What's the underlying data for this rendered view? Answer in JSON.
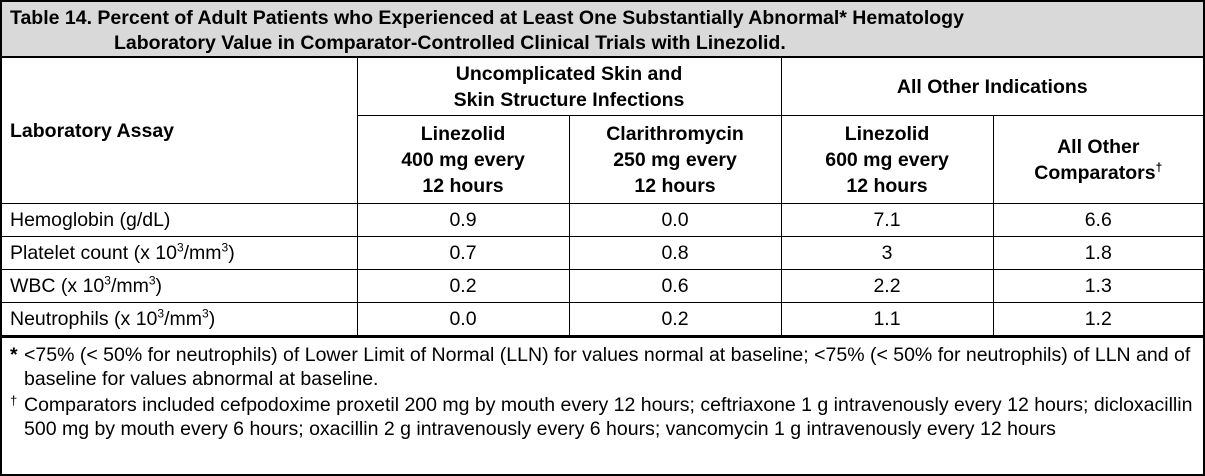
{
  "title": {
    "line1": "Table 14. Percent of Adult Patients who Experienced at Least One Substantially Abnormal* Hematology",
    "line2": "Laboratory Value in Comparator-Controlled Clinical Trials with Linezolid."
  },
  "header": {
    "assay_label": "Laboratory Assay",
    "group1": {
      "line1": "Uncomplicated Skin and",
      "line2": "Skin Structure Infections"
    },
    "group2": "All Other Indications",
    "col1": {
      "line1": "Linezolid",
      "line2": "400 mg every",
      "line3": "12 hours"
    },
    "col2": {
      "line1": "Clarithromycin",
      "line2": "250 mg every",
      "line3": "12 hours"
    },
    "col3": {
      "line1": "Linezolid",
      "line2": "600 mg every",
      "line3": "12 hours"
    },
    "col4": {
      "line1": "All Other",
      "line2": "Comparators",
      "dagger": "†"
    }
  },
  "rows": [
    {
      "label_pre": "Hemoglobin (g/dL)",
      "exp1": "",
      "mid": "",
      "exp2": "",
      "post": "",
      "values": [
        "0.9",
        "0.0",
        "7.1",
        "6.6"
      ]
    },
    {
      "label_pre": "Platelet count (x 10",
      "exp1": "3",
      "mid": "/mm",
      "exp2": "3",
      "post": ")",
      "values": [
        "0.7",
        "0.8",
        "3",
        "1.8"
      ]
    },
    {
      "label_pre": "WBC (x 10",
      "exp1": "3",
      "mid": "/mm",
      "exp2": "3",
      "post": ")",
      "values": [
        "0.2",
        "0.6",
        "2.2",
        "1.3"
      ]
    },
    {
      "label_pre": "Neutrophils (x 10",
      "exp1": "3",
      "mid": "/mm",
      "exp2": "3",
      "post": ")",
      "values": [
        "0.0",
        "0.2",
        "1.1",
        "1.2"
      ]
    }
  ],
  "footnotes": [
    {
      "mark": "*",
      "text": "<75% (< 50% for neutrophils) of Lower Limit of Normal (LLN) for values normal at baseline; <75% (< 50% for neutrophils) of LLN and of baseline for values abnormal at baseline."
    },
    {
      "mark": "†",
      "text": "Comparators included cefpodoxime proxetil 200 mg by mouth every 12 hours; ceftriaxone 1 g intravenously every 12 hours; dicloxacillin 500 mg by mouth every 6 hours; oxacillin 2 g intravenously every 6 hours; vancomycin 1 g intravenously every 12 hours"
    }
  ]
}
